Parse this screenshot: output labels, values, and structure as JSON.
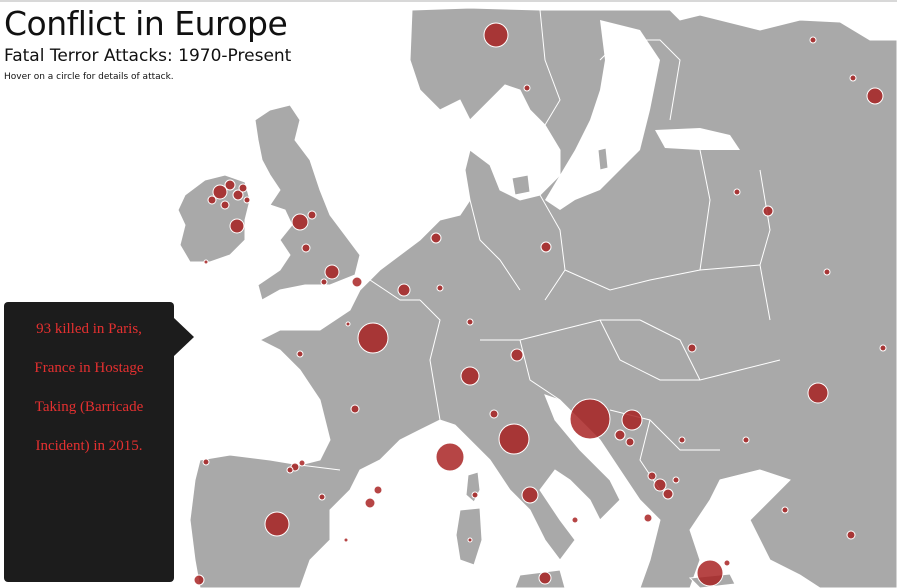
{
  "header": {
    "title": "Conflict in Europe",
    "subtitle": "Fatal Terror Attacks: 1970-Present",
    "hint": "Hover on a circle for details of attack."
  },
  "tooltip": {
    "lines": [
      "93 killed in Paris,",
      "France in Hostage",
      "Taking (Barricade",
      "Incident) in 2015."
    ]
  },
  "colors": {
    "land": "#a9a9a9",
    "sea": "#ffffff",
    "attack": "#a61c1c",
    "tooltip_bg": "#1c1c1c",
    "tooltip_text": "#e43030"
  },
  "map": {
    "features": [
      {
        "name": "Europe landmass",
        "kind": "land"
      },
      {
        "name": "Great Britain",
        "kind": "land"
      },
      {
        "name": "Ireland",
        "kind": "land"
      },
      {
        "name": "Corsica",
        "kind": "land"
      },
      {
        "name": "Sardinia",
        "kind": "land"
      },
      {
        "name": "Sicily",
        "kind": "land"
      },
      {
        "name": "Zealand",
        "kind": "land"
      },
      {
        "name": "Gotland",
        "kind": "land"
      },
      {
        "name": "Crete",
        "kind": "land"
      }
    ],
    "attack_circles_note": "Circle size encodes number of fatalities"
  }
}
